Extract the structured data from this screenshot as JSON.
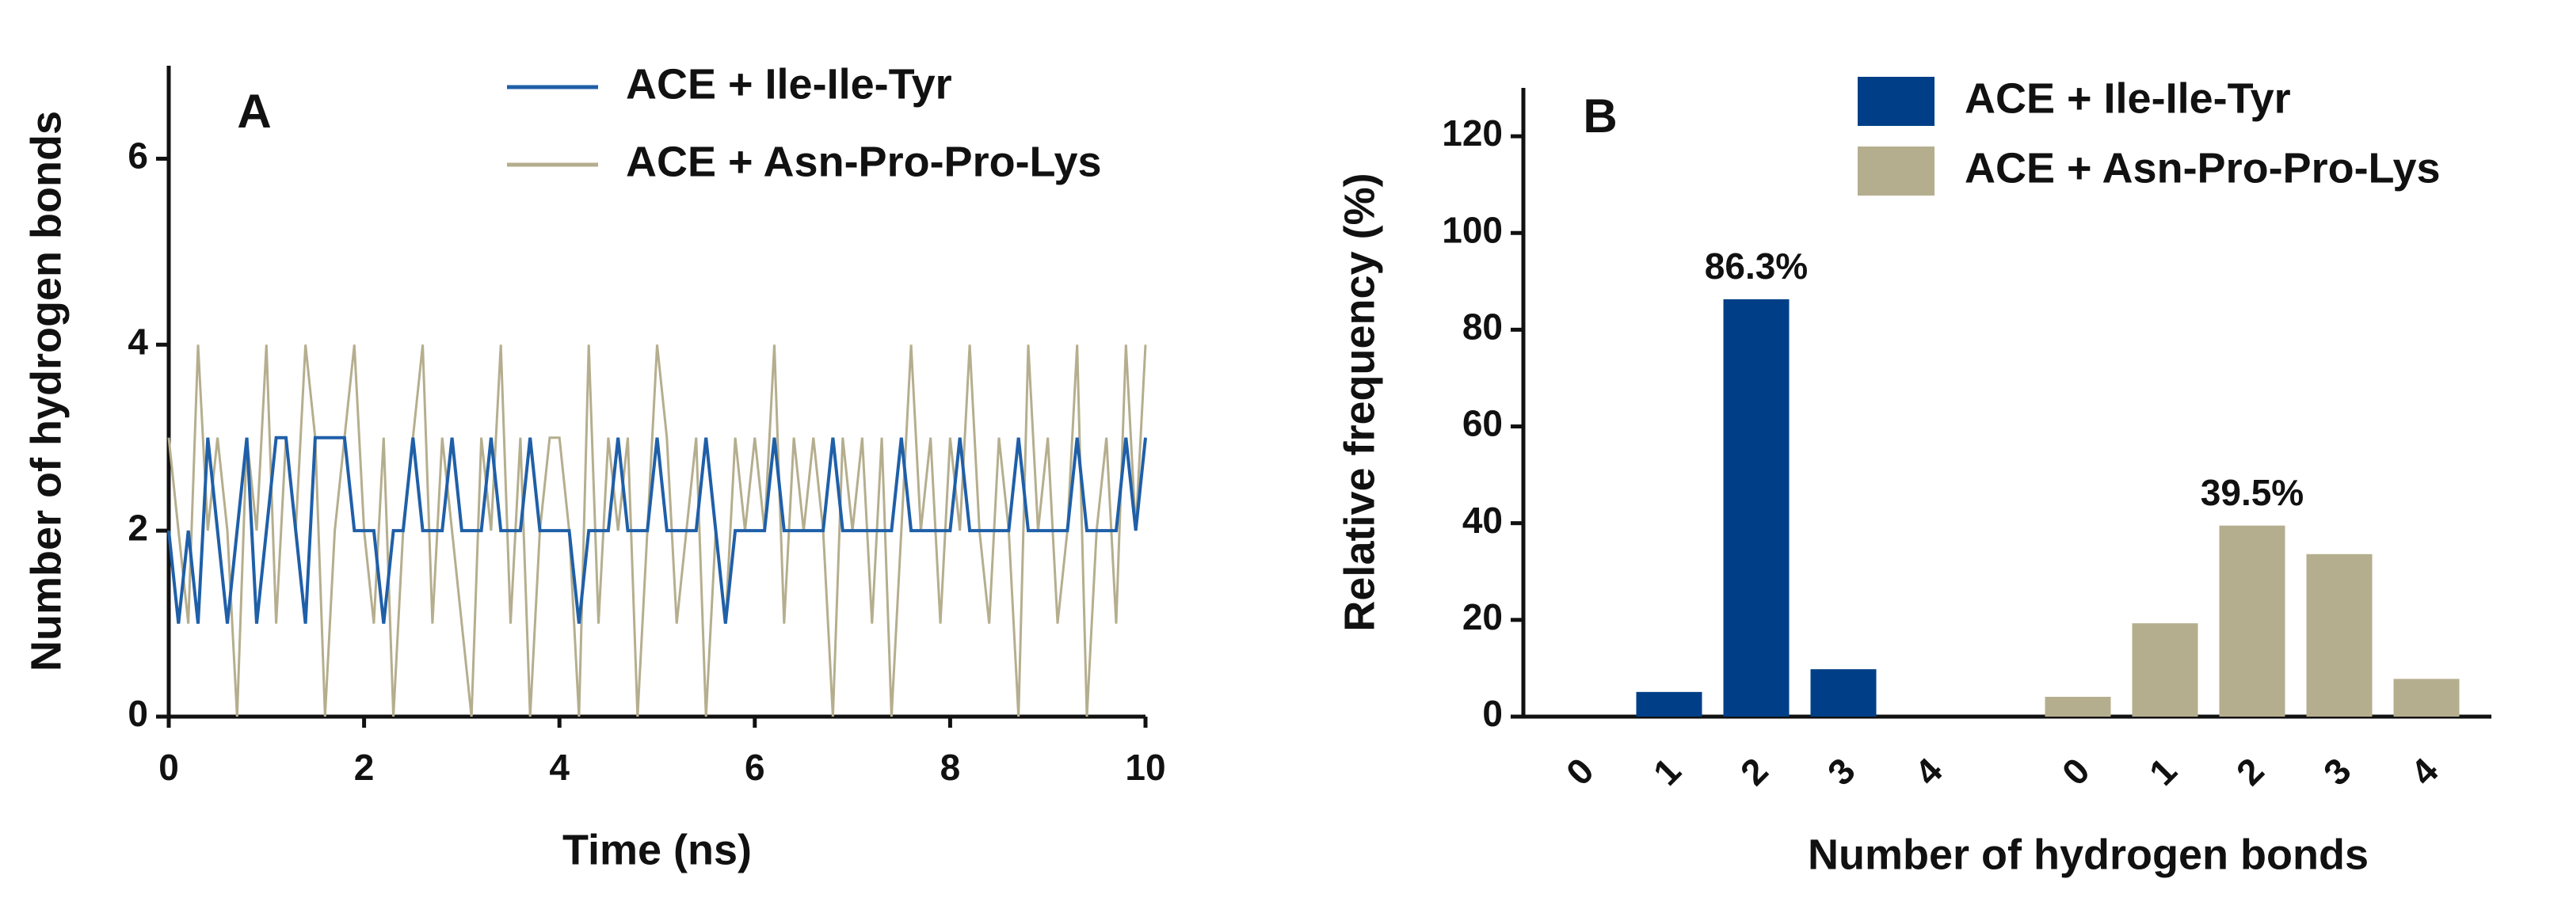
{
  "chart_data": [
    {
      "type": "line",
      "panel_label": "A",
      "x_label": "Time (ns)",
      "y_label": "Number of hydrogen bonds",
      "x": [
        0,
        0.1,
        0.2,
        0.3,
        0.4,
        0.5,
        0.6,
        0.7,
        0.8,
        0.9,
        1,
        1.1,
        1.2,
        1.3,
        1.4,
        1.5,
        1.6,
        1.7,
        1.8,
        1.9,
        2,
        2.1,
        2.2,
        2.3,
        2.4,
        2.5,
        2.6,
        2.7,
        2.8,
        2.9,
        3,
        3.1,
        3.2,
        3.3,
        3.4,
        3.5,
        3.6,
        3.7,
        3.8,
        3.9,
        4,
        4.1,
        4.2,
        4.3,
        4.4,
        4.5,
        4.6,
        4.7,
        4.8,
        4.9,
        5,
        5.1,
        5.2,
        5.3,
        5.4,
        5.5,
        5.6,
        5.7,
        5.8,
        5.9,
        6,
        6.1,
        6.2,
        6.3,
        6.4,
        6.5,
        6.6,
        6.7,
        6.8,
        6.9,
        7,
        7.1,
        7.2,
        7.3,
        7.4,
        7.5,
        7.6,
        7.7,
        7.8,
        7.9,
        8,
        8.1,
        8.2,
        8.3,
        8.4,
        8.5,
        8.6,
        8.7,
        8.8,
        8.9,
        9,
        9.1,
        9.2,
        9.3,
        9.4,
        9.5,
        9.6,
        9.7,
        9.8,
        9.9,
        10
      ],
      "series": [
        {
          "name": "ACE + Ile-Ile-Tyr",
          "color": "#1f5fa8",
          "values": [
            2,
            1,
            2,
            1,
            3,
            2,
            1,
            2,
            3,
            1,
            2,
            3,
            3,
            2,
            1,
            3,
            3,
            3,
            3,
            2,
            2,
            2,
            1,
            2,
            2,
            3,
            2,
            2,
            2,
            3,
            2,
            2,
            2,
            3,
            2,
            2,
            2,
            3,
            2,
            2,
            2,
            2,
            1,
            2,
            2,
            2,
            3,
            2,
            2,
            2,
            3,
            2,
            2,
            2,
            2,
            3,
            2,
            1,
            2,
            2,
            2,
            2,
            3,
            2,
            2,
            2,
            2,
            2,
            3,
            2,
            2,
            2,
            2,
            2,
            2,
            3,
            2,
            2,
            2,
            2,
            2,
            3,
            2,
            2,
            2,
            2,
            2,
            3,
            2,
            2,
            2,
            2,
            2,
            3,
            2,
            2,
            2,
            2,
            3,
            2,
            3
          ]
        },
        {
          "name": "ACE + Asn-Pro-Pro-Lys",
          "color": "#b5ae8e",
          "values": [
            3,
            2,
            1,
            4,
            2,
            3,
            2,
            0,
            3,
            2,
            4,
            1,
            3,
            2,
            4,
            3,
            0,
            2,
            3,
            4,
            2,
            1,
            3,
            0,
            2,
            3,
            4,
            1,
            3,
            2,
            1,
            0,
            3,
            2,
            4,
            1,
            3,
            0,
            2,
            3,
            3,
            2,
            0,
            4,
            1,
            3,
            2,
            3,
            0,
            2,
            4,
            3,
            1,
            2,
            3,
            0,
            2,
            1,
            3,
            2,
            3,
            2,
            4,
            1,
            3,
            2,
            3,
            2,
            0,
            3,
            2,
            3,
            1,
            3,
            0,
            2,
            4,
            2,
            3,
            1,
            3,
            2,
            4,
            2,
            1,
            3,
            2,
            0,
            4,
            2,
            3,
            1,
            2,
            4,
            0,
            2,
            3,
            1,
            4,
            2,
            4
          ]
        }
      ],
      "xlim": [
        0,
        10
      ],
      "xticks": [
        0,
        2,
        4,
        6,
        8,
        10
      ],
      "ylim": [
        0,
        7
      ],
      "yticks": [
        0,
        2,
        4,
        6
      ]
    },
    {
      "type": "bar",
      "panel_label": "B",
      "x_label": "Number of hydrogen bonds",
      "y_label": "Relative frequency (%)",
      "categories": [
        "0",
        "1",
        "2",
        "3",
        "4"
      ],
      "series": [
        {
          "name": "ACE + Ile-Ile-Tyr",
          "color": "#003f87",
          "values": [
            0,
            5.1,
            86.3,
            9.8,
            0
          ],
          "value_labels": [
            null,
            null,
            "86.3%",
            null,
            null
          ]
        },
        {
          "name": "ACE + Asn-Pro-Pro-Lys",
          "color": "#b5ae8e",
          "values": [
            4.1,
            19.3,
            39.5,
            33.6,
            7.8
          ],
          "value_labels": [
            null,
            null,
            "39.5%",
            null,
            null
          ]
        }
      ],
      "ylim": [
        0,
        130
      ],
      "yticks": [
        0,
        20,
        40,
        60,
        80,
        100,
        120
      ]
    }
  ]
}
